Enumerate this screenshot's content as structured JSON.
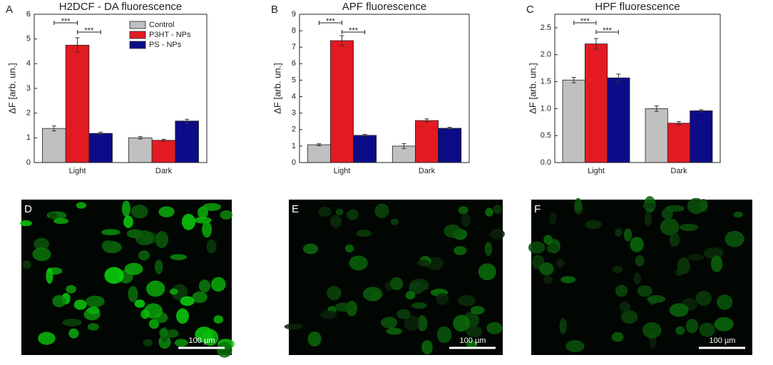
{
  "chart_data": [
    {
      "type": "bar",
      "panel": "A",
      "title": "H2DCF - DA fluorescence",
      "ylabel": "ΔF [arb. un.]",
      "categories": [
        "Light",
        "Dark"
      ],
      "ylim": [
        0,
        6
      ],
      "yticks": [
        0,
        1,
        2,
        3,
        4,
        5,
        6
      ],
      "legend": "upper right",
      "annotations": [
        "***",
        "***"
      ],
      "series": [
        {
          "name": "Control",
          "color": "#c0c0c0",
          "values": [
            1.38,
            1.0
          ],
          "errors": [
            0.1,
            0.05
          ]
        },
        {
          "name": "P3HT - NPs",
          "color": "#e31a22",
          "values": [
            4.75,
            0.9
          ],
          "errors": [
            0.3,
            0.04
          ]
        },
        {
          "name": "PS - NPs",
          "color": "#0c0c88",
          "values": [
            1.18,
            1.68
          ],
          "errors": [
            0.05,
            0.07
          ]
        }
      ]
    },
    {
      "type": "bar",
      "panel": "B",
      "title": "APF fluorescence",
      "ylabel": "ΔF [arb. un.]",
      "categories": [
        "Light",
        "Dark"
      ],
      "ylim": [
        0,
        9
      ],
      "yticks": [
        0,
        1,
        2,
        3,
        4,
        5,
        6,
        7,
        8,
        9
      ],
      "annotations": [
        "***",
        "***"
      ],
      "series": [
        {
          "name": "Control",
          "color": "#c0c0c0",
          "values": [
            1.08,
            1.0
          ],
          "errors": [
            0.06,
            0.15
          ]
        },
        {
          "name": "P3HT - NPs",
          "color": "#e31a22",
          "values": [
            7.4,
            2.55
          ],
          "errors": [
            0.3,
            0.1
          ]
        },
        {
          "name": "PS - NPs",
          "color": "#0c0c88",
          "values": [
            1.65,
            2.08
          ],
          "errors": [
            0.06,
            0.06
          ]
        }
      ]
    },
    {
      "type": "bar",
      "panel": "C",
      "title": "HPF fluorescence",
      "ylabel": "ΔF [arb. un.]",
      "categories": [
        "Light",
        "Dark"
      ],
      "ylim": [
        0,
        2.75
      ],
      "yticks": [
        {
          "value": 0,
          "label": "0.0"
        },
        {
          "value": 0.5,
          "label": "0.5"
        },
        {
          "value": 1,
          "label": "1.0"
        },
        {
          "value": 1.5,
          "label": "1.5"
        },
        {
          "value": 2,
          "label": "2.0"
        },
        {
          "value": 2.5,
          "label": "2.5"
        }
      ],
      "annotations": [
        "***",
        "***"
      ],
      "series": [
        {
          "name": "Control",
          "color": "#c0c0c0",
          "values": [
            1.53,
            1.0
          ],
          "errors": [
            0.05,
            0.05
          ]
        },
        {
          "name": "P3HT - NPs",
          "color": "#e31a22",
          "values": [
            2.2,
            0.73
          ],
          "errors": [
            0.1,
            0.03
          ]
        },
        {
          "name": "PS - NPs",
          "color": "#0c0c88",
          "values": [
            1.57,
            0.96
          ],
          "errors": [
            0.07,
            0.02
          ]
        }
      ]
    }
  ],
  "images": [
    {
      "panel": "D",
      "scale_bar": "100 µm"
    },
    {
      "panel": "E",
      "scale_bar": "100 µm"
    },
    {
      "panel": "F",
      "scale_bar": "100 µm"
    }
  ]
}
